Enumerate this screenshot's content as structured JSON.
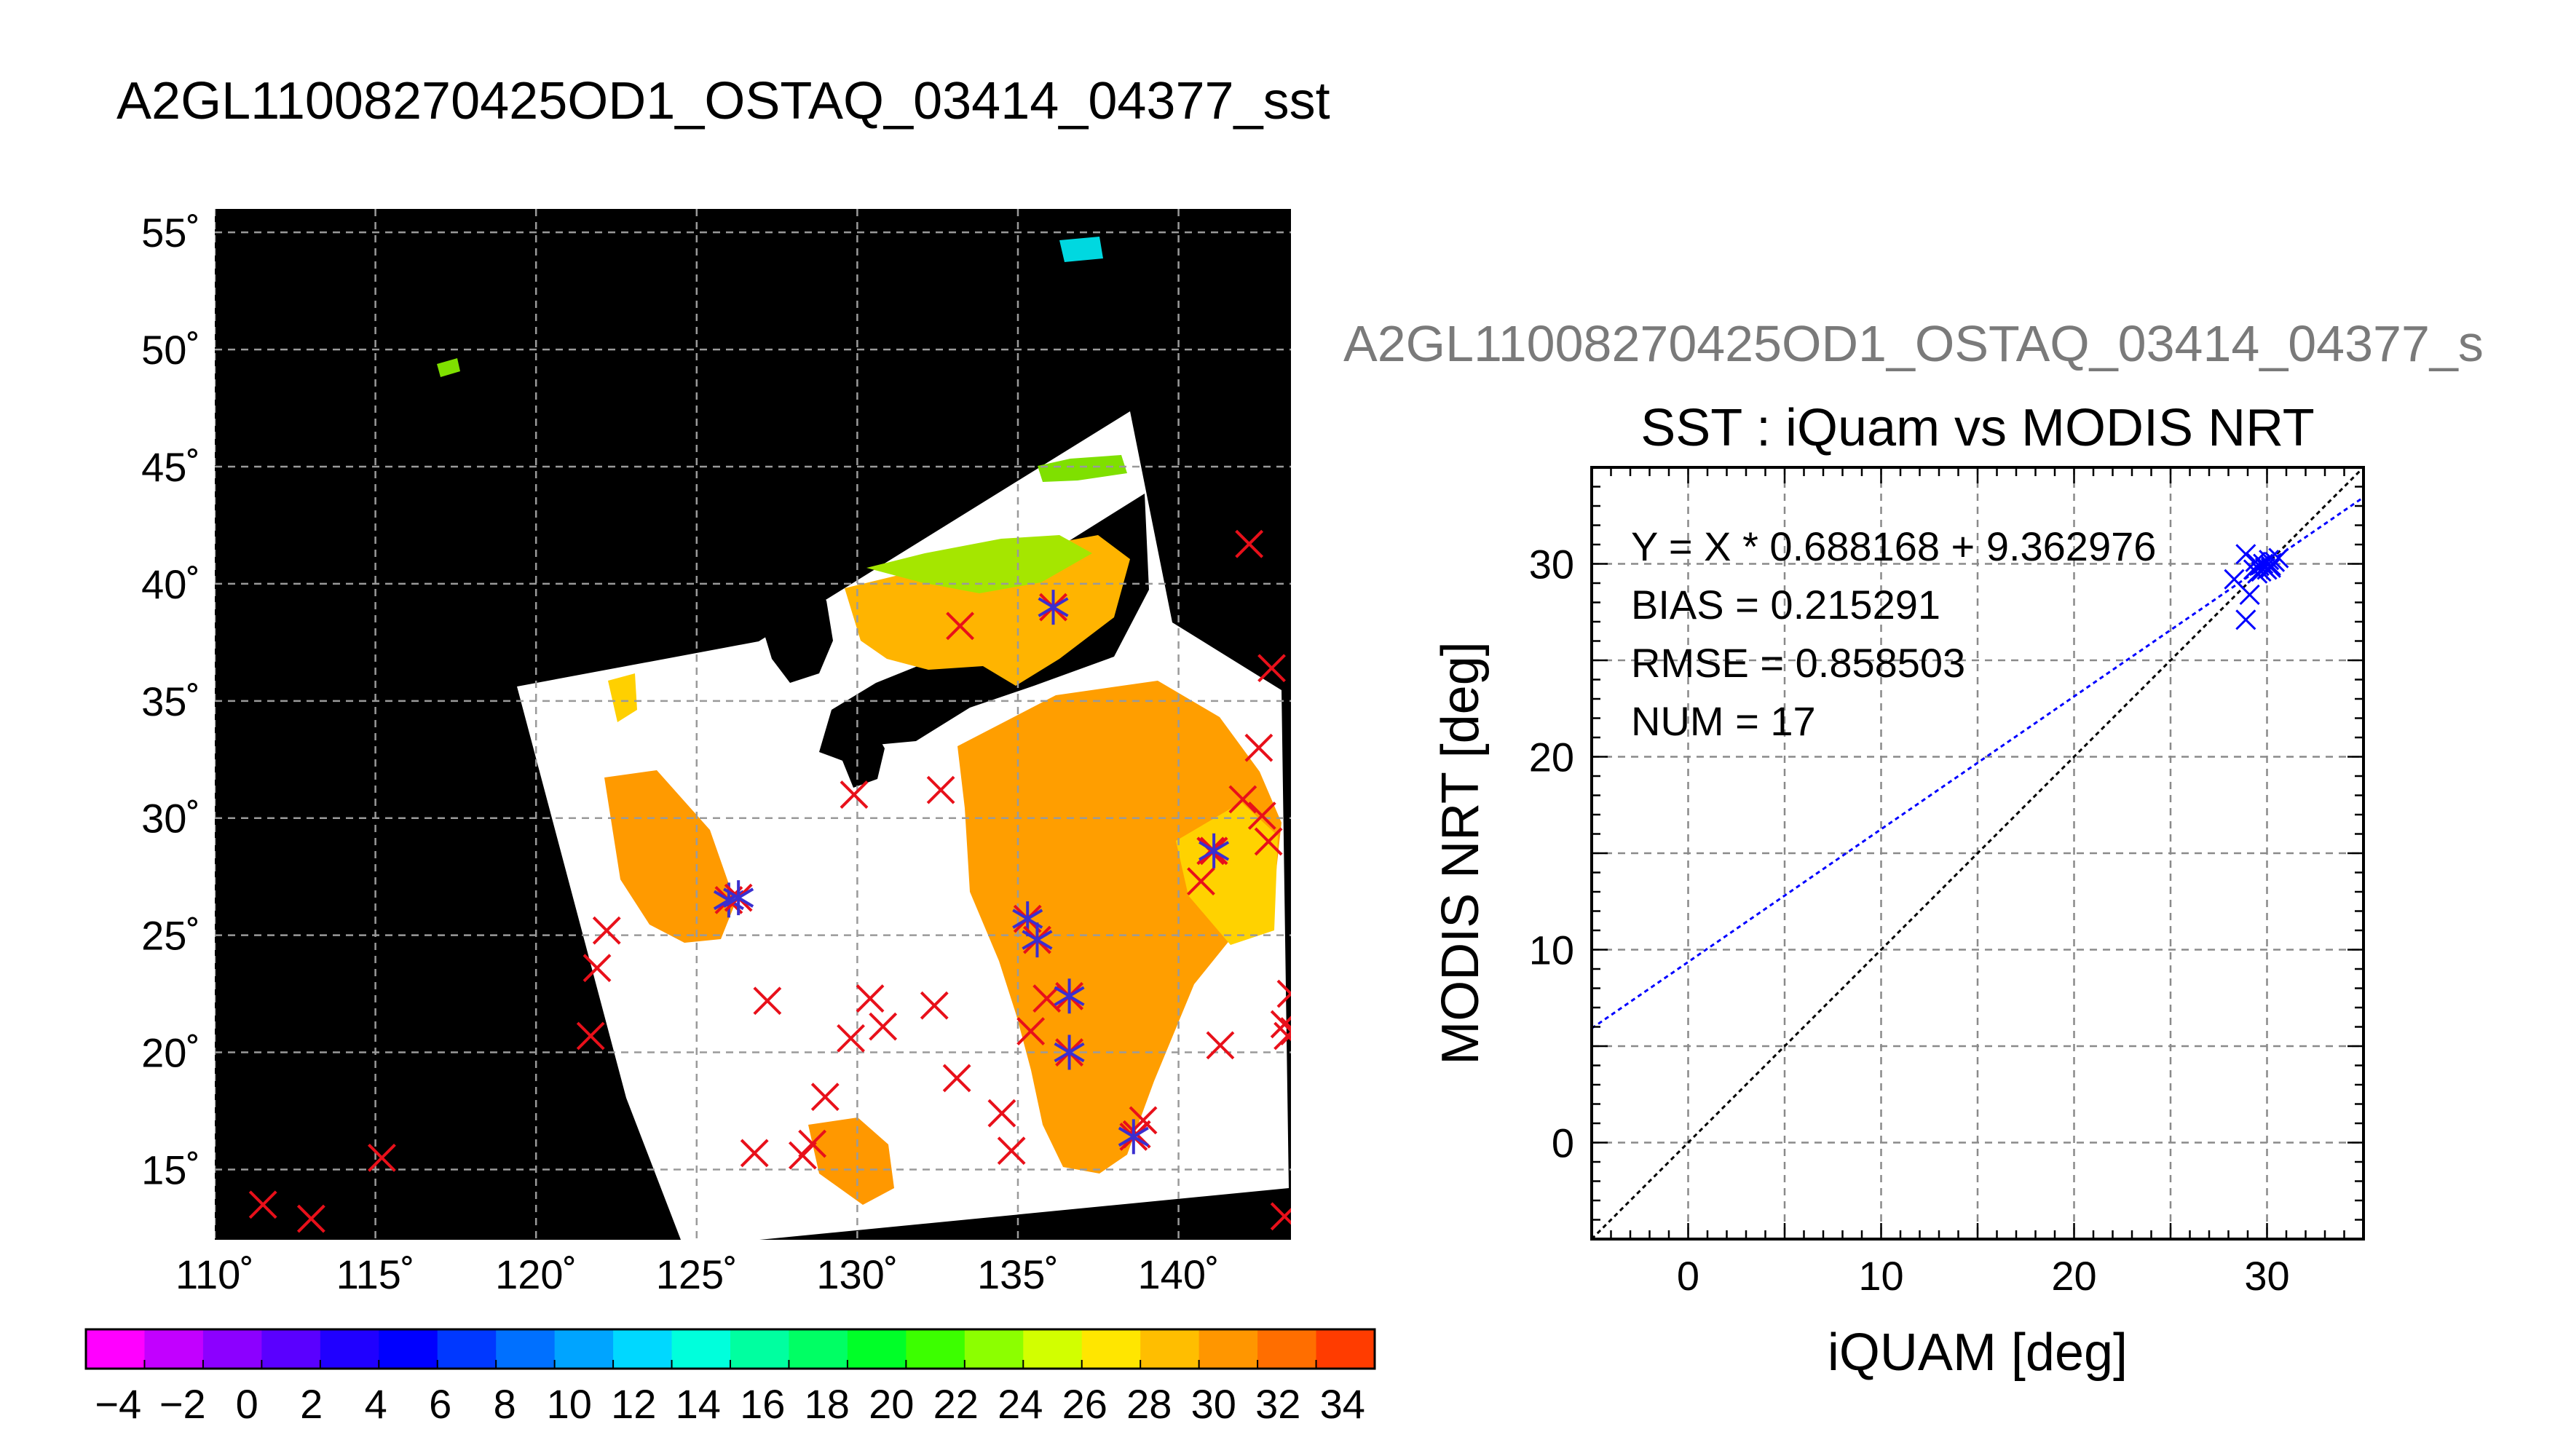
{
  "main_title": "A2GL11008270425OD1_OSTAQ_03414_04377_sst",
  "secondary_title": "A2GL11008270425OD1_OSTAQ_03414_04377_s",
  "chart_data": [
    {
      "type": "map",
      "x_ticks": [
        "110˚",
        "115˚",
        "120˚",
        "125˚",
        "130˚",
        "135˚",
        "140˚"
      ],
      "x_tick_values": [
        110,
        115,
        120,
        125,
        130,
        135,
        140
      ],
      "y_ticks": [
        "55˚",
        "50˚",
        "45˚",
        "40˚",
        "35˚",
        "30˚",
        "25˚",
        "20˚",
        "15˚"
      ],
      "y_tick_values": [
        55,
        50,
        45,
        40,
        35,
        30,
        25,
        20,
        15
      ],
      "xlim": [
        110,
        143.5
      ],
      "ylim": [
        12,
        56
      ],
      "grid": true,
      "colorbar": {
        "ticks": [
          "−4",
          "−2",
          "0",
          "2",
          "4",
          "6",
          "8",
          "10",
          "12",
          "14",
          "16",
          "18",
          "20",
          "22",
          "24",
          "26",
          "28",
          "30",
          "32",
          "34"
        ],
        "tick_values": [
          -4,
          -2,
          0,
          2,
          4,
          6,
          8,
          10,
          12,
          14,
          16,
          18,
          20,
          22,
          24,
          26,
          28,
          30,
          32,
          34
        ],
        "range": [
          -5,
          35
        ],
        "step": 2,
        "colors": [
          "#ff00ff",
          "#c200ff",
          "#8c00ff",
          "#5a00ff",
          "#2000ff",
          "#0000ff",
          "#0038ff",
          "#0070ff",
          "#00a4ff",
          "#00d8ff",
          "#00ffdc",
          "#00ffa0",
          "#00ff64",
          "#00ff28",
          "#3cff00",
          "#8cff00",
          "#d2ff00",
          "#ffe600",
          "#ffbe00",
          "#ff9600",
          "#ff6e00",
          "#ff3c00"
        ]
      },
      "stations_red_x": [
        [
          111.5,
          13.5
        ],
        [
          113,
          12.9
        ],
        [
          115.2,
          15.5
        ],
        [
          121.7,
          20.7
        ],
        [
          121.9,
          23.6
        ],
        [
          122.2,
          25.2
        ],
        [
          126.8,
          15.7
        ],
        [
          127.2,
          22.2
        ],
        [
          128.3,
          15.6
        ],
        [
          128.6,
          16.1
        ],
        [
          129,
          18.1
        ],
        [
          129.8,
          20.6
        ],
        [
          130.4,
          22.3
        ],
        [
          130.8,
          21.1
        ],
        [
          129.9,
          31
        ],
        [
          132.4,
          22
        ],
        [
          132.6,
          31.2
        ],
        [
          133.1,
          18.9
        ],
        [
          133.2,
          38.2
        ],
        [
          134.5,
          17.4
        ],
        [
          134.8,
          15.8
        ],
        [
          135.4,
          20.9
        ],
        [
          135.9,
          22.3
        ],
        [
          138.7,
          16.5
        ],
        [
          138.9,
          17.1
        ],
        [
          140.7,
          27.3
        ],
        [
          141,
          28.6
        ],
        [
          141.3,
          20.3
        ],
        [
          142,
          30.8
        ],
        [
          142.2,
          41.7
        ],
        [
          142.5,
          33
        ],
        [
          142.6,
          30.1
        ],
        [
          142.8,
          29
        ],
        [
          142.9,
          36.4
        ],
        [
          143.5,
          22.5
        ],
        [
          143.3,
          21.2
        ],
        [
          143.4,
          20.7
        ],
        [
          143.6,
          20.9
        ],
        [
          143.3,
          13
        ]
      ],
      "stations_blue_star": [
        [
          126,
          26.5
        ],
        [
          126.3,
          26.6
        ],
        [
          136.1,
          39
        ],
        [
          135.3,
          25.7
        ],
        [
          135.6,
          24.8
        ],
        [
          136.6,
          22.4
        ],
        [
          136.6,
          20
        ],
        [
          138.6,
          16.4
        ],
        [
          141.1,
          28.6
        ]
      ]
    },
    {
      "type": "scatter",
      "title": "SST : iQuam vs MODIS NRT",
      "xlabel": "iQUAM [deg]",
      "ylabel": "MODIS NRT [deg]",
      "xlim": [
        -5,
        35
      ],
      "ylim": [
        -5,
        35
      ],
      "x_ticks": [
        "0",
        "10",
        "20",
        "30"
      ],
      "x_tick_values": [
        0,
        10,
        20,
        30
      ],
      "y_ticks": [
        "0",
        "10",
        "20",
        "30"
      ],
      "y_tick_values": [
        0,
        10,
        20,
        30
      ],
      "grid": true,
      "grid_step": 5,
      "annotations": [
        "Y = X * 0.688168 + 9.362976",
        "BIAS = 0.215291",
        "RMSE = 0.858503",
        "NUM = 17"
      ],
      "fit": {
        "slope": 0.688168,
        "intercept": 9.362976,
        "color": "#0000ff"
      },
      "identity_line": {
        "color": "#000000"
      },
      "marker_color": "#0000ff",
      "points": [
        [
          28.3,
          29.2
        ],
        [
          28.9,
          30.5
        ],
        [
          28.9,
          27.1
        ],
        [
          29.1,
          28.4
        ],
        [
          29.3,
          29.7
        ],
        [
          29.4,
          30.1
        ],
        [
          29.5,
          29.5
        ],
        [
          29.6,
          29.9
        ],
        [
          29.7,
          29.6
        ],
        [
          29.8,
          30
        ],
        [
          29.9,
          29.8
        ],
        [
          30,
          29.7
        ],
        [
          30.1,
          30.2
        ],
        [
          30.2,
          29.8
        ],
        [
          30.4,
          30.1
        ],
        [
          30.6,
          30.3
        ],
        [
          30.2,
          29.9
        ]
      ]
    }
  ]
}
